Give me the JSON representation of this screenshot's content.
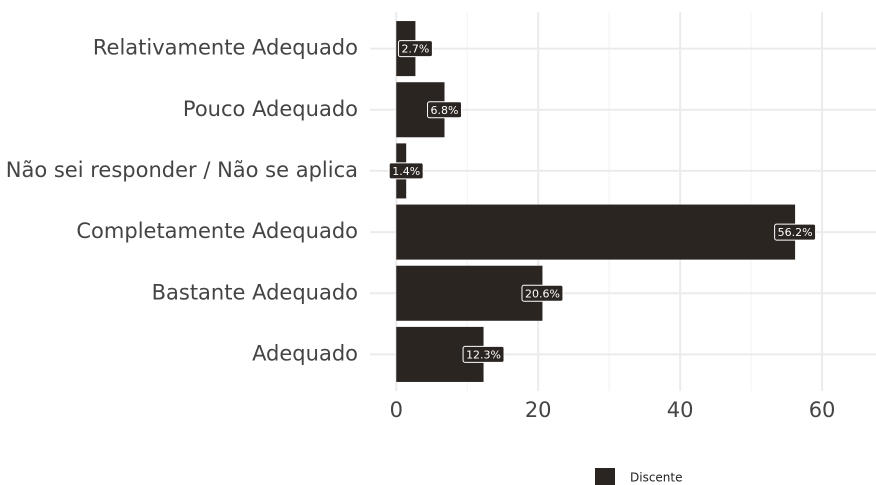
{
  "chart_data": {
    "type": "bar",
    "orientation": "horizontal",
    "categories": [
      "Relativamente Adequado",
      "Pouco Adequado",
      "Não sei responder / Não se aplica",
      "Completamente Adequado",
      "Bastante Adequado",
      "Adequado"
    ],
    "series": [
      {
        "name": "Discente",
        "color": "#2b2522",
        "values": [
          2.7,
          6.8,
          1.4,
          56.2,
          20.6,
          12.3
        ],
        "value_labels": [
          "2.7%",
          "6.8%",
          "1.4%",
          "56.2%",
          "20.6%",
          "12.3%"
        ]
      }
    ],
    "xlim": [
      -3.7,
      67.6
    ],
    "xticks": [
      0,
      20,
      40,
      60
    ],
    "xminor": [
      10,
      30,
      50
    ],
    "grid": true,
    "legend": "bottom"
  }
}
